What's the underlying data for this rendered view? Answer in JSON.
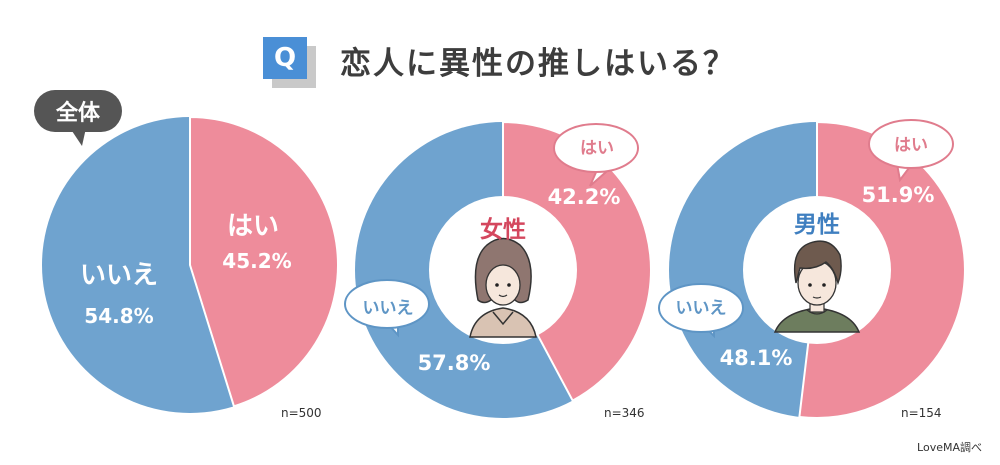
{
  "title": {
    "q_badge": "Q",
    "text": "恋人に異性の推しはいる？"
  },
  "colors": {
    "yes": "#ee8c9b",
    "no": "#6fa3cf",
    "q_badge": "#4a8fd6",
    "female_label": "#d4475e",
    "male_label": "#3f7fc0",
    "overall_tag": "#555555"
  },
  "overall": {
    "tag": "全体",
    "yes_label": "はい",
    "yes_pct": "45.2%",
    "no_label": "いいえ",
    "no_pct": "54.8%",
    "n": "n=500"
  },
  "female": {
    "label": "女性",
    "yes_label": "はい",
    "yes_pct": "42.2%",
    "no_label": "いいえ",
    "no_pct": "57.8%",
    "n": "n=346"
  },
  "male": {
    "label": "男性",
    "yes_label": "はい",
    "yes_pct": "51.9%",
    "no_label": "いいえ",
    "no_pct": "48.1%",
    "n": "n=154"
  },
  "credit": "LoveMA調べ",
  "chart_data": [
    {
      "type": "pie",
      "title": "全体",
      "categories": [
        "はい",
        "いいえ"
      ],
      "values": [
        45.2,
        54.8
      ],
      "n": 500
    },
    {
      "type": "pie",
      "title": "女性",
      "categories": [
        "はい",
        "いいえ"
      ],
      "values": [
        42.2,
        57.8
      ],
      "n": 346,
      "donut": true
    },
    {
      "type": "pie",
      "title": "男性",
      "categories": [
        "はい",
        "いいえ"
      ],
      "values": [
        51.9,
        48.1
      ],
      "n": 154,
      "donut": true
    }
  ]
}
